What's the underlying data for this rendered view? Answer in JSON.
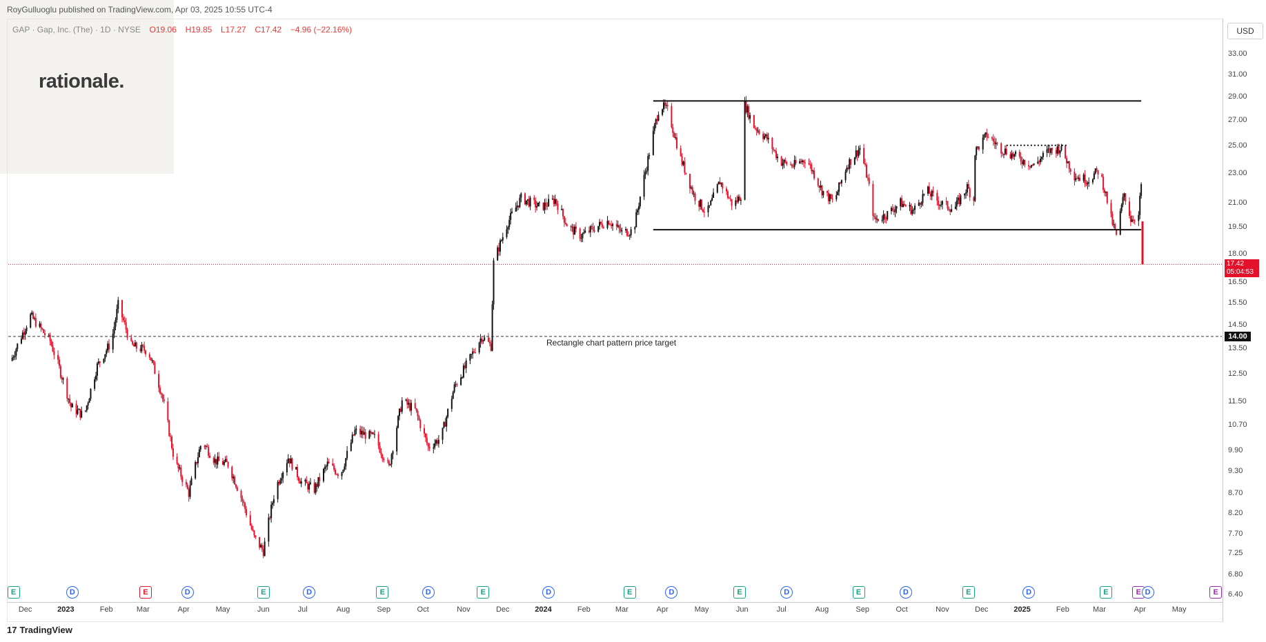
{
  "header": {
    "published": "RoyGulluoglu published on TradingView.com, Apr 03, 2025 10:55 UTC-4"
  },
  "symbol": {
    "name": "GAP · Gap, Inc. (The) · 1D · NYSE",
    "open": "O19.06",
    "high": "H19.85",
    "low": "L17.27",
    "close": "C17.42",
    "change": "−4.96 (−22.16%)"
  },
  "logo": {
    "text": "rationale."
  },
  "axis": {
    "currency": "USD"
  },
  "price_tag": {
    "price": "17.42",
    "countdown": "05:04:53"
  },
  "target_tag": {
    "price": "14.00"
  },
  "annotation": {
    "target_label": "Rectangle chart pattern price target"
  },
  "footer": {
    "brand": "TradingView",
    "mark": "17"
  },
  "colors": {
    "up": "#111111",
    "down": "#e5102a",
    "line": "#111111"
  },
  "chart_data": {
    "type": "candlestick",
    "scale": "log",
    "ylim": [
      6.4,
      35.0
    ],
    "y_ticks": [
      "33.00",
      "31.00",
      "29.00",
      "27.00",
      "25.00",
      "23.00",
      "21.00",
      "19.50",
      "18.00",
      "16.50",
      "15.50",
      "14.50",
      "13.50",
      "12.50",
      "11.50",
      "10.70",
      "9.90",
      "9.30",
      "8.70",
      "8.20",
      "7.70",
      "7.25",
      "6.80",
      "6.40"
    ],
    "x_ticks": [
      {
        "label": "Dec",
        "bold": false
      },
      {
        "label": "2023",
        "bold": true
      },
      {
        "label": "Feb",
        "bold": false
      },
      {
        "label": "Mar",
        "bold": false
      },
      {
        "label": "Apr",
        "bold": false
      },
      {
        "label": "May",
        "bold": false
      },
      {
        "label": "Jun",
        "bold": false
      },
      {
        "label": "Jul",
        "bold": false
      },
      {
        "label": "Aug",
        "bold": false
      },
      {
        "label": "Sep",
        "bold": false
      },
      {
        "label": "Oct",
        "bold": false
      },
      {
        "label": "Nov",
        "bold": false
      },
      {
        "label": "Dec",
        "bold": false
      },
      {
        "label": "2024",
        "bold": true
      },
      {
        "label": "Feb",
        "bold": false
      },
      {
        "label": "Mar",
        "bold": false
      },
      {
        "label": "Apr",
        "bold": false
      },
      {
        "label": "May",
        "bold": false
      },
      {
        "label": "Jun",
        "bold": false
      },
      {
        "label": "Jul",
        "bold": false
      },
      {
        "label": "Aug",
        "bold": false
      },
      {
        "label": "Sep",
        "bold": false
      },
      {
        "label": "Oct",
        "bold": false
      },
      {
        "label": "Nov",
        "bold": false
      },
      {
        "label": "Dec",
        "bold": false
      },
      {
        "label": "2025",
        "bold": true
      },
      {
        "label": "Feb",
        "bold": false
      },
      {
        "label": "Mar",
        "bold": false
      },
      {
        "label": "Apr",
        "bold": false
      },
      {
        "label": "May",
        "bold": false
      }
    ],
    "price_path": [
      [
        "2022-11-20",
        13.0
      ],
      [
        "2022-12-05",
        14.9
      ],
      [
        "2022-12-20",
        13.8
      ],
      [
        "2023-01-05",
        11.3
      ],
      [
        "2023-01-15",
        11.0
      ],
      [
        "2023-01-25",
        12.8
      ],
      [
        "2023-02-05",
        13.8
      ],
      [
        "2023-02-10",
        15.4
      ],
      [
        "2023-02-20",
        13.6
      ],
      [
        "2023-03-05",
        13.4
      ],
      [
        "2023-03-15",
        11.8
      ],
      [
        "2023-03-25",
        9.6
      ],
      [
        "2023-04-05",
        8.7
      ],
      [
        "2023-04-15",
        10.2
      ],
      [
        "2023-04-25",
        9.6
      ],
      [
        "2023-05-05",
        9.5
      ],
      [
        "2023-05-15",
        8.6
      ],
      [
        "2023-05-25",
        7.6
      ],
      [
        "2023-06-01",
        7.3
      ],
      [
        "2023-06-10",
        8.8
      ],
      [
        "2023-06-20",
        9.7
      ],
      [
        "2023-06-30",
        9.0
      ],
      [
        "2023-07-10",
        8.8
      ],
      [
        "2023-07-20",
        9.5
      ],
      [
        "2023-07-30",
        9.2
      ],
      [
        "2023-08-10",
        10.5
      ],
      [
        "2023-08-25",
        10.3
      ],
      [
        "2023-09-05",
        9.4
      ],
      [
        "2023-09-15",
        11.5
      ],
      [
        "2023-09-25",
        11.2
      ],
      [
        "2023-10-05",
        10.0
      ],
      [
        "2023-10-15",
        10.3
      ],
      [
        "2023-10-25",
        12.0
      ],
      [
        "2023-11-05",
        13.0
      ],
      [
        "2023-11-15",
        14.0
      ],
      [
        "2023-11-22",
        13.6
      ],
      [
        "2023-11-24",
        17.5
      ],
      [
        "2023-12-05",
        19.8
      ],
      [
        "2023-12-15",
        21.3
      ],
      [
        "2023-12-30",
        20.7
      ],
      [
        "2024-01-10",
        21.2
      ],
      [
        "2024-01-20",
        19.5
      ],
      [
        "2024-01-30",
        19.0
      ],
      [
        "2024-02-10",
        19.5
      ],
      [
        "2024-02-20",
        19.9
      ],
      [
        "2024-03-01",
        19.2
      ],
      [
        "2024-03-10",
        19.3
      ],
      [
        "2024-03-20",
        23.5
      ],
      [
        "2024-03-30",
        28.3
      ],
      [
        "2024-04-05",
        27.8
      ],
      [
        "2024-04-15",
        24.0
      ],
      [
        "2024-04-25",
        21.5
      ],
      [
        "2024-05-05",
        20.3
      ],
      [
        "2024-05-15",
        22.4
      ],
      [
        "2024-05-25",
        20.8
      ],
      [
        "2024-05-31",
        21.5
      ],
      [
        "2024-06-01",
        28.8
      ],
      [
        "2024-06-10",
        26.5
      ],
      [
        "2024-06-20",
        25.5
      ],
      [
        "2024-06-30",
        23.8
      ],
      [
        "2024-07-10",
        23.5
      ],
      [
        "2024-07-20",
        24.0
      ],
      [
        "2024-08-01",
        21.8
      ],
      [
        "2024-08-10",
        21.0
      ],
      [
        "2024-08-20",
        23.5
      ],
      [
        "2024-08-30",
        24.8
      ],
      [
        "2024-09-05",
        22.5
      ],
      [
        "2024-09-10",
        19.9
      ],
      [
        "2024-09-20",
        20.3
      ],
      [
        "2024-09-30",
        21.0
      ],
      [
        "2024-10-10",
        20.5
      ],
      [
        "2024-10-20",
        21.8
      ],
      [
        "2024-10-30",
        21.0
      ],
      [
        "2024-11-10",
        20.6
      ],
      [
        "2024-11-20",
        22.0
      ],
      [
        "2024-11-25",
        21.2
      ],
      [
        "2024-11-26",
        24.5
      ],
      [
        "2024-12-05",
        25.8
      ],
      [
        "2024-12-15",
        24.8
      ],
      [
        "2024-12-30",
        24.0
      ],
      [
        "2025-01-10",
        23.5
      ],
      [
        "2025-01-20",
        24.5
      ],
      [
        "2025-01-30",
        24.8
      ],
      [
        "2025-02-10",
        22.8
      ],
      [
        "2025-02-20",
        22.5
      ],
      [
        "2025-03-01",
        23.2
      ],
      [
        "2025-03-06",
        21.5
      ],
      [
        "2025-03-10",
        20.0
      ],
      [
        "2025-03-14",
        19.0
      ],
      [
        "2025-03-20",
        21.6
      ],
      [
        "2025-03-25",
        20.0
      ],
      [
        "2025-03-31",
        20.2
      ],
      [
        "2025-04-02",
        22.2
      ],
      [
        "2025-04-03",
        17.42
      ]
    ],
    "lines": [
      {
        "kind": "rectangle-top",
        "price": 28.6,
        "from": "2024-03-25",
        "to": "2025-04-02"
      },
      {
        "kind": "rectangle-bottom",
        "price": 19.35,
        "from": "2024-03-25",
        "to": "2025-04-02"
      },
      {
        "kind": "resistance-dotted",
        "price": 25.0,
        "from": "2024-12-20",
        "to": "2025-02-05"
      },
      {
        "kind": "target",
        "price": 14.0,
        "from": "2022-11-20",
        "to": "2025-04-30"
      },
      {
        "kind": "last-price",
        "price": 17.42,
        "from": "2022-11-20",
        "to": "2025-04-30"
      }
    ],
    "events": [
      {
        "type": "E",
        "date": "2022-11-22",
        "color": "#16a085"
      },
      {
        "type": "D",
        "date": "2023-01-06",
        "color": "#2962ff"
      },
      {
        "type": "E",
        "date": "2023-03-03",
        "color": "#e5102a"
      },
      {
        "type": "D",
        "date": "2023-04-04",
        "color": "#2962ff"
      },
      {
        "type": "E",
        "date": "2023-06-01",
        "color": "#16a085"
      },
      {
        "type": "D",
        "date": "2023-07-06",
        "color": "#2962ff"
      },
      {
        "type": "E",
        "date": "2023-08-31",
        "color": "#16a085"
      },
      {
        "type": "D",
        "date": "2023-10-05",
        "color": "#2962ff"
      },
      {
        "type": "E",
        "date": "2023-11-16",
        "color": "#16a085"
      },
      {
        "type": "D",
        "date": "2024-01-05",
        "color": "#2962ff"
      },
      {
        "type": "E",
        "date": "2024-03-07",
        "color": "#16a085"
      },
      {
        "type": "D",
        "date": "2024-04-08",
        "color": "#2962ff"
      },
      {
        "type": "E",
        "date": "2024-05-30",
        "color": "#16a085"
      },
      {
        "type": "D",
        "date": "2024-07-05",
        "color": "#2962ff"
      },
      {
        "type": "E",
        "date": "2024-08-29",
        "color": "#16a085"
      },
      {
        "type": "D",
        "date": "2024-10-04",
        "color": "#2962ff"
      },
      {
        "type": "E",
        "date": "2024-11-21",
        "color": "#16a085"
      },
      {
        "type": "D",
        "date": "2025-01-06",
        "color": "#2962ff"
      },
      {
        "type": "E",
        "date": "2025-03-06",
        "color": "#16a085"
      },
      {
        "type": "E",
        "date": "2025-03-31",
        "color": "#9c27b0"
      },
      {
        "type": "D",
        "date": "2025-04-07",
        "color": "#2962ff"
      },
      {
        "type": "E",
        "date": "2025-05-29",
        "color": "#9c27b0"
      }
    ]
  }
}
